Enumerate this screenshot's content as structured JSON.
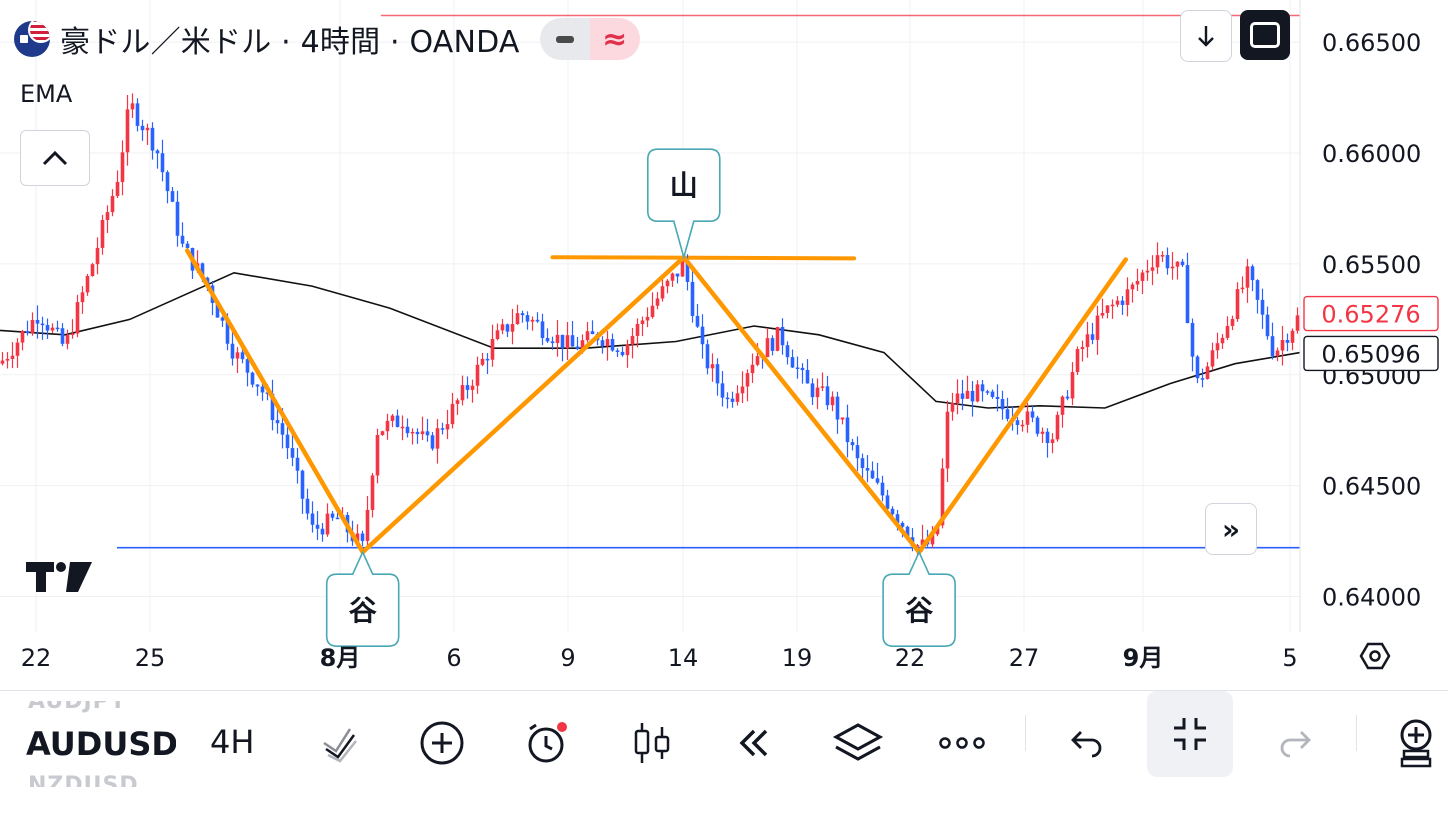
{
  "header": {
    "title": "豪ドル／米ドル · 4時間 · OANDA",
    "indicator": "EMA"
  },
  "colors": {
    "up_candle": "#f23645",
    "down_candle": "#2962ff",
    "ema_line": "#000000",
    "drawing": "#ff9800",
    "support_line": "#2962ff",
    "alert_line": "#f23645",
    "label_border": "#4aa8b4"
  },
  "icons": {
    "download": "down-arrow-icon",
    "fullscreen": "fullscreen-icon",
    "collapse": "chevron-up-icon",
    "scroll": "double-chevron-right-icon",
    "settings": "hexagon-settings-icon"
  },
  "chart_data": {
    "type": "candlestick",
    "x_tick_labels": [
      "22",
      "25",
      "8月",
      "6",
      "9",
      "14",
      "19",
      "22",
      "27",
      "9月",
      "5"
    ],
    "y_tick_labels": [
      "0.66500",
      "0.66000",
      "0.65500",
      "0.65000",
      "0.64500",
      "0.64000"
    ],
    "ylim": [
      0.6384,
      0.6669
    ],
    "price_labels": {
      "last_price": "0.65276",
      "ema_value": "0.65096"
    },
    "horizontal_lines": [
      {
        "role": "support",
        "price": 0.6422
      },
      {
        "role": "resistance",
        "price": 0.6553
      },
      {
        "role": "alert",
        "price": 0.6662
      }
    ],
    "trend_lines": [
      [
        [
          0.144,
          0.6556
        ],
        [
          0.279,
          0.642
        ]
      ],
      [
        [
          0.279,
          0.642
        ],
        [
          0.526,
          0.6553
        ]
      ],
      [
        [
          0.526,
          0.6553
        ],
        [
          0.707,
          0.642
        ]
      ],
      [
        [
          0.707,
          0.642
        ],
        [
          0.866,
          0.6552
        ]
      ]
    ],
    "annotations": [
      {
        "text": "谷",
        "x": 0.279,
        "price": 0.642
      },
      {
        "text": "山",
        "x": 0.526,
        "price": 0.6553
      },
      {
        "text": "谷",
        "x": 0.707,
        "price": 0.642
      }
    ],
    "close_path": [
      [
        0.0,
        0.6505
      ],
      [
        0.03,
        0.6528
      ],
      [
        0.05,
        0.6512
      ],
      [
        0.07,
        0.6548
      ],
      [
        0.09,
        0.6588
      ],
      [
        0.1,
        0.6622
      ],
      [
        0.12,
        0.6603
      ],
      [
        0.14,
        0.6558
      ],
      [
        0.16,
        0.654
      ],
      [
        0.18,
        0.651
      ],
      [
        0.2,
        0.6495
      ],
      [
        0.22,
        0.647
      ],
      [
        0.24,
        0.643
      ],
      [
        0.26,
        0.6435
      ],
      [
        0.279,
        0.6422
      ],
      [
        0.29,
        0.6475
      ],
      [
        0.31,
        0.648
      ],
      [
        0.33,
        0.6468
      ],
      [
        0.36,
        0.6495
      ],
      [
        0.38,
        0.6515
      ],
      [
        0.4,
        0.6528
      ],
      [
        0.42,
        0.652
      ],
      [
        0.44,
        0.6512
      ],
      [
        0.46,
        0.6518
      ],
      [
        0.48,
        0.6512
      ],
      [
        0.5,
        0.653
      ],
      [
        0.526,
        0.655
      ],
      [
        0.54,
        0.651
      ],
      [
        0.56,
        0.6488
      ],
      [
        0.58,
        0.6508
      ],
      [
        0.6,
        0.6518
      ],
      [
        0.62,
        0.6495
      ],
      [
        0.64,
        0.6488
      ],
      [
        0.66,
        0.646
      ],
      [
        0.68,
        0.6445
      ],
      [
        0.7,
        0.6428
      ],
      [
        0.707,
        0.6422
      ],
      [
        0.72,
        0.6425
      ],
      [
        0.73,
        0.6488
      ],
      [
        0.75,
        0.6492
      ],
      [
        0.77,
        0.6485
      ],
      [
        0.79,
        0.648
      ],
      [
        0.81,
        0.6472
      ],
      [
        0.83,
        0.651
      ],
      [
        0.85,
        0.6528
      ],
      [
        0.87,
        0.6538
      ],
      [
        0.89,
        0.6555
      ],
      [
        0.91,
        0.6545
      ],
      [
        0.92,
        0.6495
      ],
      [
        0.93,
        0.6505
      ],
      [
        0.95,
        0.6532
      ],
      [
        0.96,
        0.6545
      ],
      [
        0.98,
        0.651
      ],
      [
        1.0,
        0.6527
      ]
    ],
    "ema_path": [
      [
        0.0,
        0.652
      ],
      [
        0.05,
        0.6518
      ],
      [
        0.1,
        0.6525
      ],
      [
        0.18,
        0.6546
      ],
      [
        0.24,
        0.654
      ],
      [
        0.3,
        0.653
      ],
      [
        0.38,
        0.6512
      ],
      [
        0.45,
        0.6512
      ],
      [
        0.52,
        0.6515
      ],
      [
        0.58,
        0.6522
      ],
      [
        0.63,
        0.6518
      ],
      [
        0.68,
        0.651
      ],
      [
        0.72,
        0.6488
      ],
      [
        0.76,
        0.6485
      ],
      [
        0.8,
        0.6486
      ],
      [
        0.85,
        0.6485
      ],
      [
        0.9,
        0.6496
      ],
      [
        0.95,
        0.6505
      ],
      [
        1.0,
        0.651
      ]
    ]
  },
  "toolbar": {
    "symbol_prev": "AUDJPY",
    "symbol": "AUDUSD",
    "symbol_next": "NZDUSD",
    "timeframe": "4H"
  }
}
